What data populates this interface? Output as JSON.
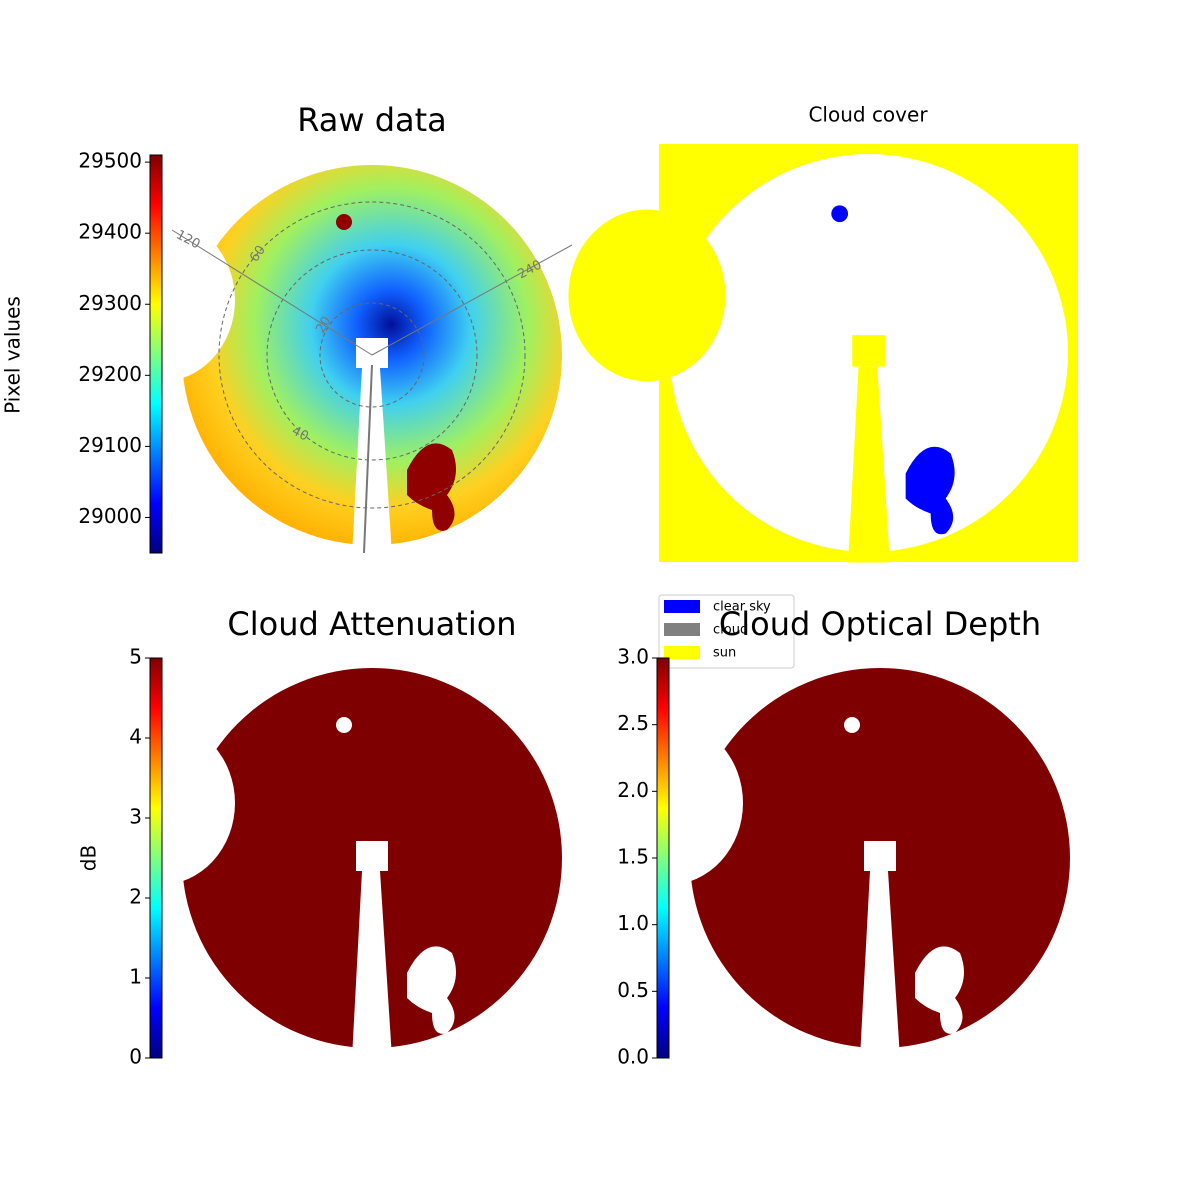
{
  "chart_data": [
    {
      "type": "image",
      "title": "Raw data",
      "colorbar": {
        "label": "Pixel values",
        "lim": [
          28950,
          29510
        ],
        "ticks": [
          29000,
          29100,
          29200,
          29300,
          29400,
          29500
        ]
      },
      "annotations": [
        "120",
        "60",
        "20",
        "240",
        "40"
      ]
    },
    {
      "type": "image",
      "title": "Cloud cover",
      "legend": [
        {
          "name": "clear sky",
          "color": "#0000ff"
        },
        {
          "name": "cloud",
          "color": "#808080"
        },
        {
          "name": "sun",
          "color": "#ffff00"
        }
      ]
    },
    {
      "type": "image",
      "title": "Cloud Attenuation",
      "colorbar": {
        "label": "dB",
        "lim": [
          0,
          5
        ],
        "ticks": [
          0,
          1,
          2,
          3,
          4,
          5
        ]
      }
    },
    {
      "type": "image",
      "title": "Cloud Optical Depth",
      "colorbar": {
        "lim": [
          0,
          3
        ],
        "ticks": [
          {
            "value": 0,
            "label": "0.0"
          },
          0.5,
          {
            "value": 1,
            "label": "1.0"
          },
          1.5,
          {
            "value": 2,
            "label": "2.0"
          },
          2.5,
          {
            "value": 3,
            "label": "3.0"
          }
        ]
      }
    }
  ]
}
